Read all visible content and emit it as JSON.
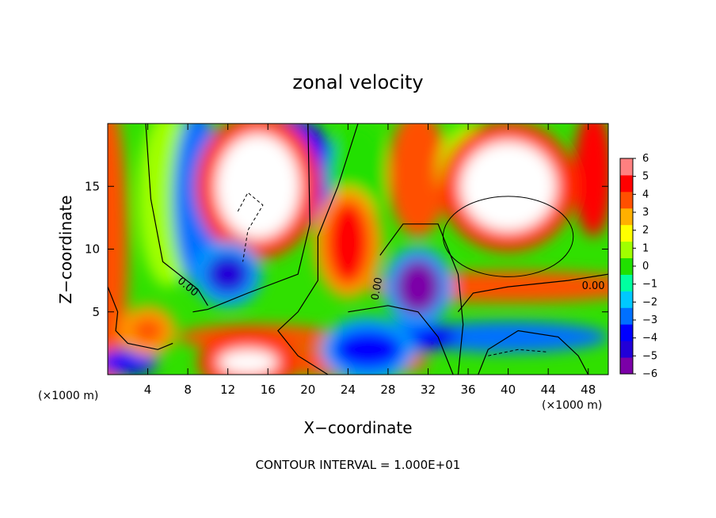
{
  "chart_data": {
    "type": "heatmap",
    "title": "zonal velocity",
    "xlabel": "X−coordinate",
    "ylabel": "Z−coordinate",
    "x_unit_label": "(×1000 m)",
    "x_unit_label_right": "(×1000 m)",
    "xlim": [
      0,
      50
    ],
    "ylim": [
      0,
      20
    ],
    "x_ticks": [
      4,
      8,
      12,
      16,
      20,
      24,
      28,
      32,
      36,
      40,
      44,
      48
    ],
    "y_ticks": [
      5,
      10,
      15
    ],
    "colorbar": {
      "ticks": [
        6,
        5,
        4,
        3,
        2,
        1,
        0,
        -1,
        -2,
        -3,
        -4,
        -5,
        -6
      ],
      "tick_labels": [
        "6",
        "5",
        "4",
        "3",
        "2",
        "1",
        "0",
        "−1",
        "−2",
        "−3",
        "−4",
        "−5",
        "−6"
      ],
      "range": [
        -6,
        6
      ],
      "colors": [
        "#7b00a8",
        "#2200d8",
        "#0000ff",
        "#0070ff",
        "#00c8ff",
        "#00ffa0",
        "#20e000",
        "#a0ff00",
        "#ffff00",
        "#ffb000",
        "#ff5000",
        "#ff0000",
        "#ff8080"
      ]
    },
    "regions_out_of_range": "white",
    "contour_labels": [
      "0.00",
      "0.00",
      "0.00"
    ],
    "contour_interval_text": "CONTOUR INTERVAL = 1.000E+01",
    "features": [
      {
        "kind": "blob",
        "x": 15,
        "z": 15,
        "value": 8
      },
      {
        "kind": "blob",
        "x": 40,
        "z": 15,
        "value": 8
      },
      {
        "kind": "blob",
        "x": 24,
        "z": 10.5,
        "value": 5
      },
      {
        "kind": "blob",
        "x": 31,
        "z": 7,
        "value": -6
      },
      {
        "kind": "blob",
        "x": 12,
        "z": 8,
        "value": -5
      },
      {
        "kind": "blob",
        "x": 26,
        "z": 2,
        "value": -4
      },
      {
        "kind": "blob",
        "x": 4,
        "z": 3.5,
        "value": 4
      },
      {
        "kind": "blob",
        "x": 14,
        "z": 1,
        "value": 7
      }
    ]
  }
}
